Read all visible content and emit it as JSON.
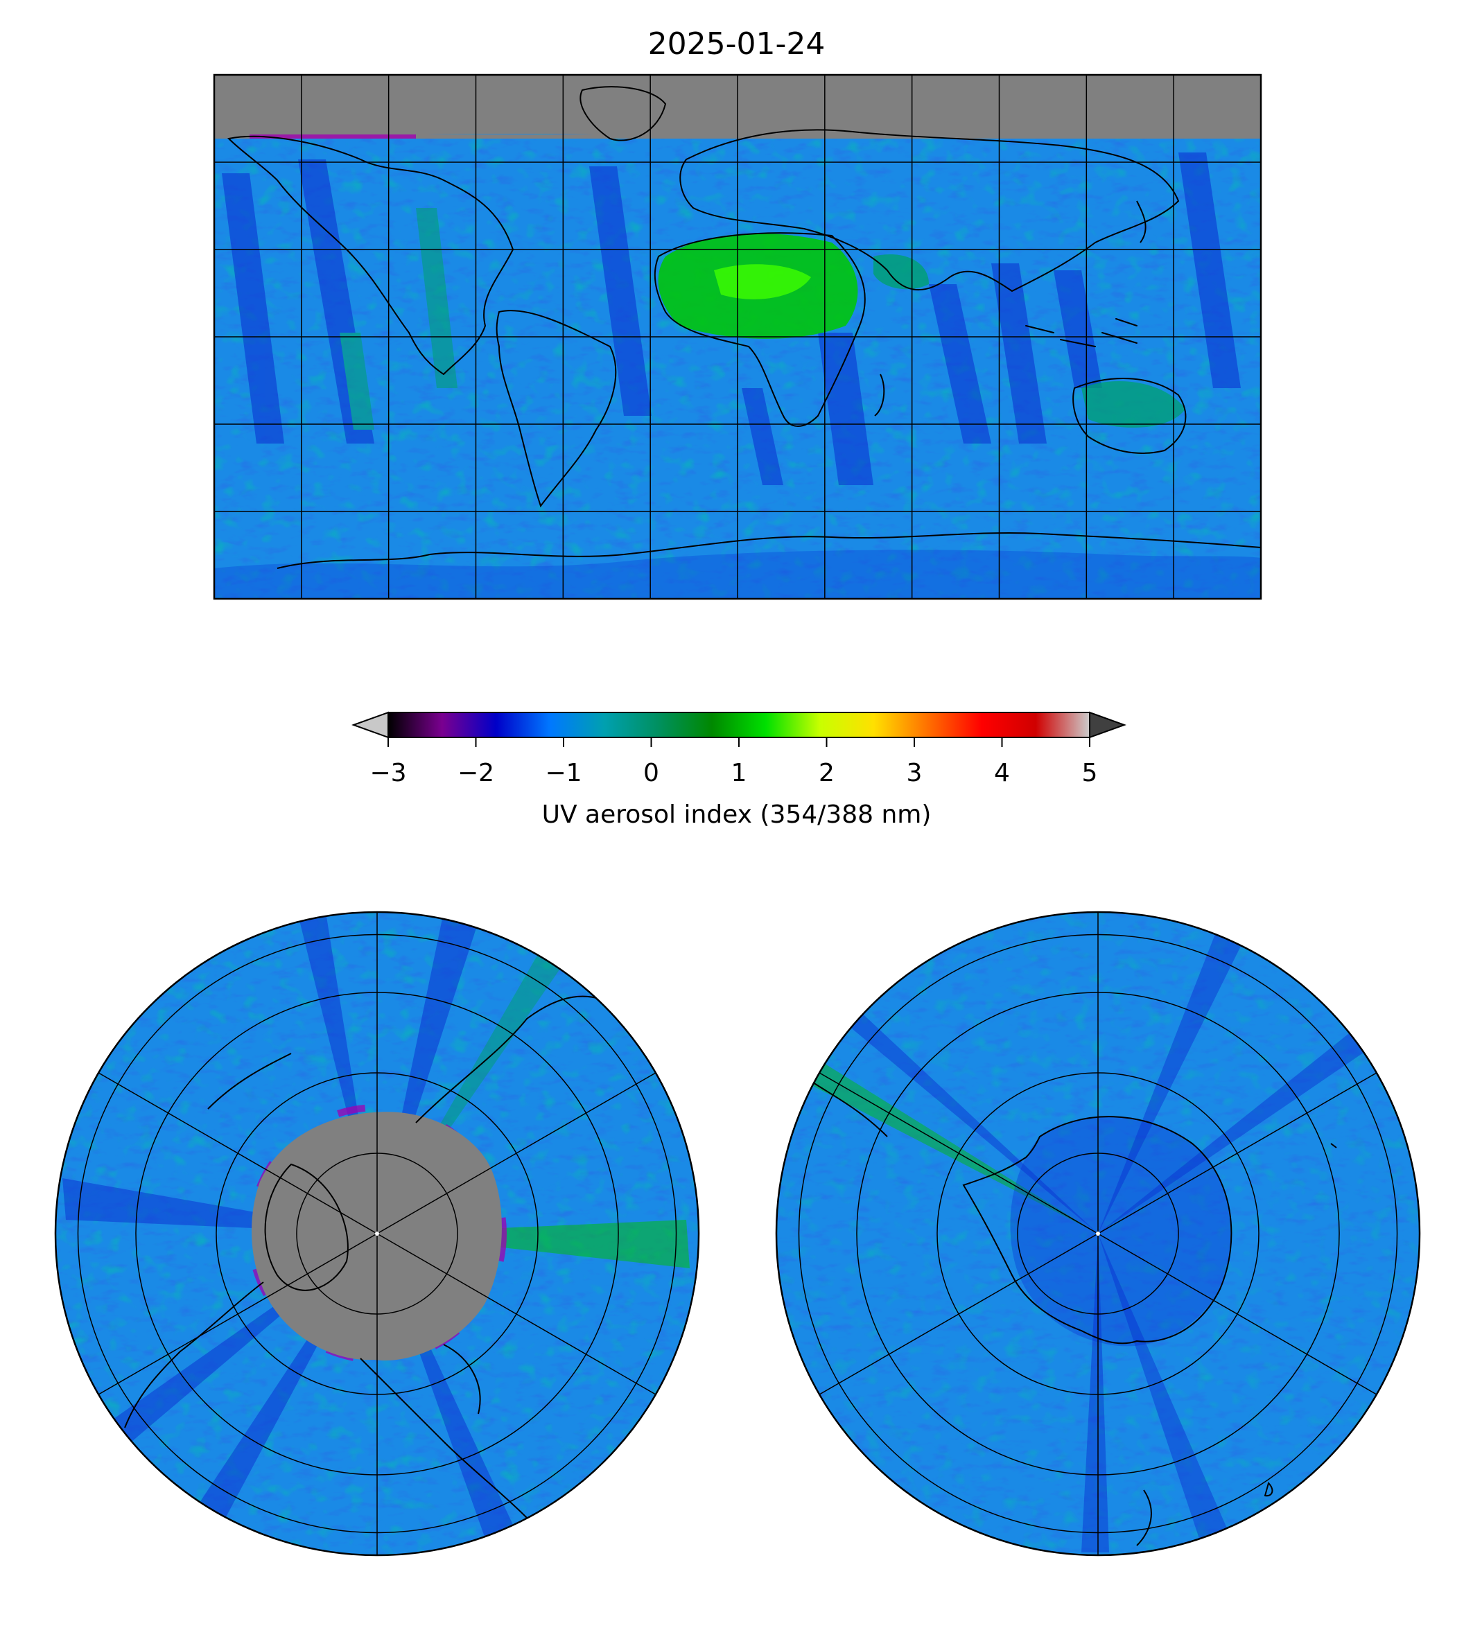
{
  "figure": {
    "title": "2025-01-24"
  },
  "colorbar": {
    "label": "UV aerosol index (354/388 nm)",
    "min": -3,
    "max": 5,
    "extend": "both",
    "ticks": [
      "−3",
      "−2",
      "−1",
      "0",
      "1",
      "2",
      "3",
      "4",
      "5"
    ],
    "colormap": [
      "#000000",
      "#7a0090",
      "#0000c8",
      "#0078ff",
      "#00a0b0",
      "#009060",
      "#008800",
      "#00e000",
      "#c8ff00",
      "#ffe000",
      "#ff7000",
      "#ff0000",
      "#d00000",
      "#cccccc"
    ],
    "under_color": "#c8c8c8",
    "over_color": "#404040"
  },
  "maps": {
    "global": {
      "projection": "equirectangular",
      "no_data_color": "#808080",
      "lon_grid_step_deg": 30,
      "lat_grid_step_deg": 30
    },
    "north_polar": {
      "projection": "orthographic-north-pole",
      "no_data_color": "#808080"
    },
    "south_polar": {
      "projection": "orthographic-south-pole"
    }
  },
  "colors": {
    "ocean_field": "#1a8ae6",
    "low_index": "#0a2ed0",
    "moderate_index": "#00a070",
    "high_index": "#00e000",
    "coastline": "#000000",
    "gridline": "#000000"
  }
}
